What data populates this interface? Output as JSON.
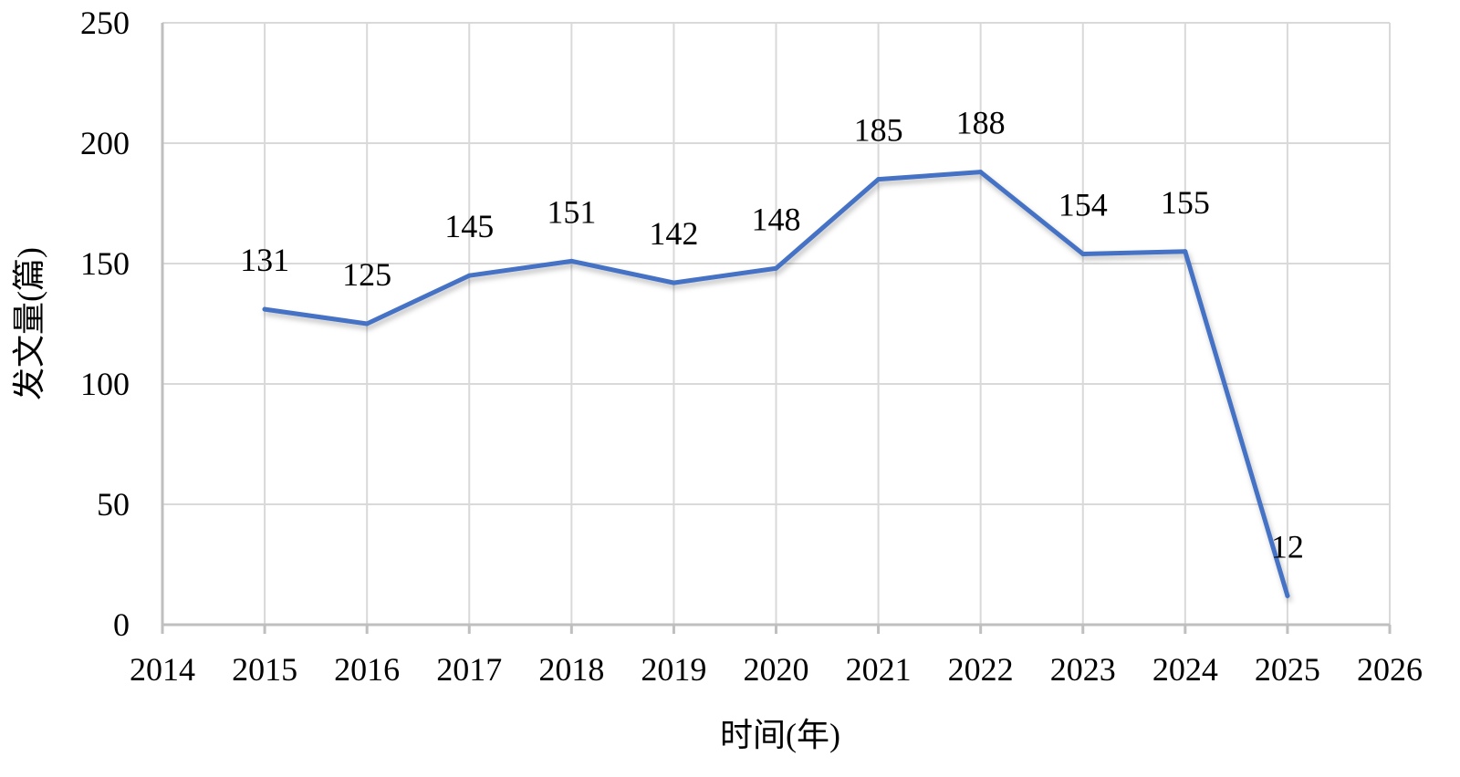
{
  "chart_data": {
    "type": "line",
    "title": "",
    "xlabel": "时间(年)",
    "ylabel": "发文量(篇)",
    "xlim": [
      2014,
      2026
    ],
    "ylim": [
      0,
      250
    ],
    "xticks": [
      2014,
      2015,
      2016,
      2017,
      2018,
      2019,
      2020,
      2021,
      2022,
      2023,
      2024,
      2025,
      2026
    ],
    "yticks": [
      0,
      50,
      100,
      150,
      200,
      250
    ],
    "grid": true,
    "legend": "none",
    "series": [
      {
        "name": "发文量",
        "color": "#4472C4",
        "x": [
          2015,
          2016,
          2017,
          2018,
          2019,
          2020,
          2021,
          2022,
          2023,
          2024,
          2025
        ],
        "values": [
          131,
          125,
          145,
          151,
          142,
          148,
          185,
          188,
          154,
          155,
          12
        ]
      }
    ]
  }
}
